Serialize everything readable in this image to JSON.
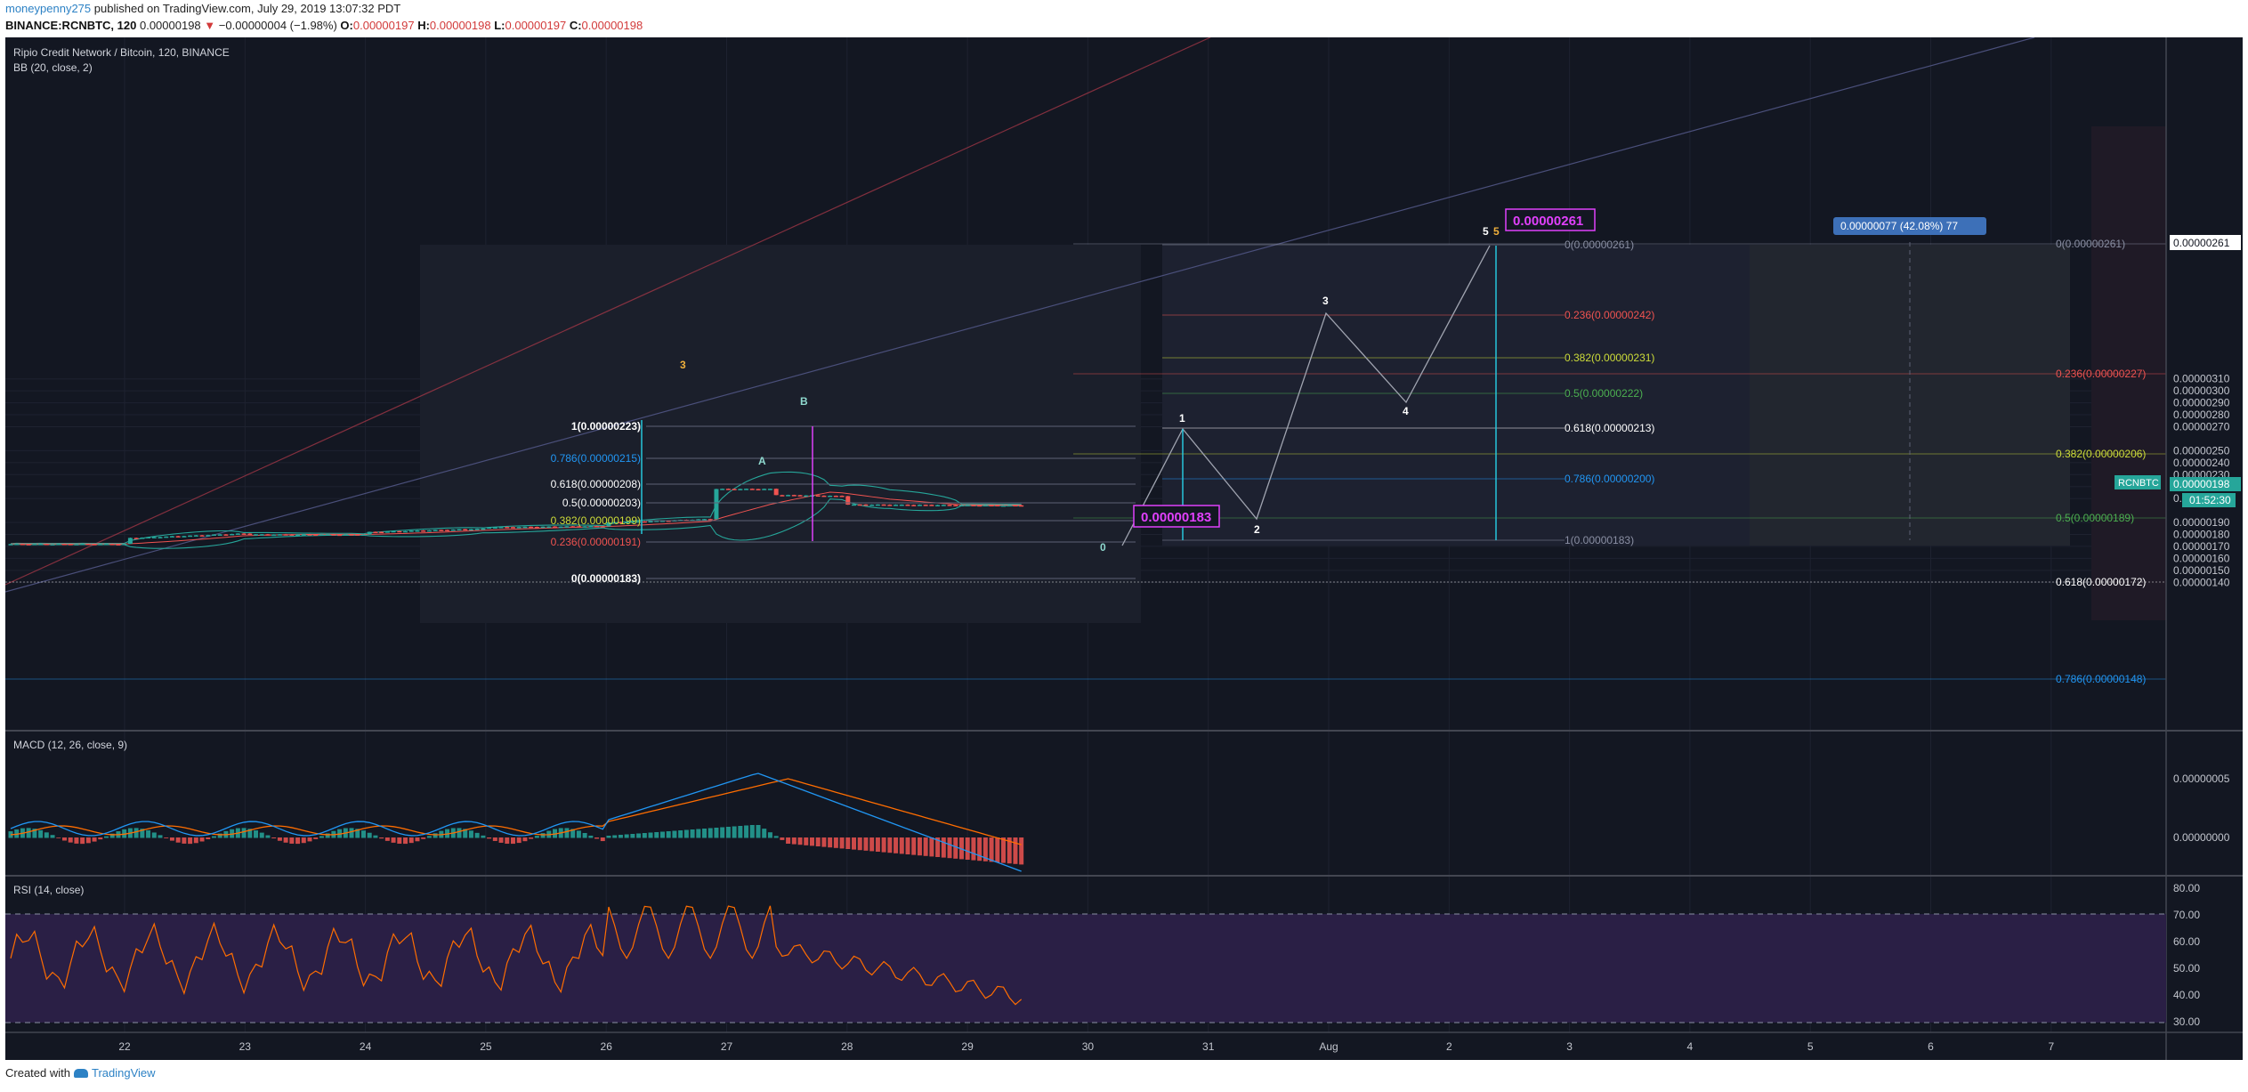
{
  "header": {
    "user": "moneypenny275",
    "published": "published on TradingView.com, July 29, 2019 13:07:32 PDT",
    "symbol_line": "BINANCE:RCNBTC, 120",
    "last": "0.00000198",
    "change": "−0.00000004 (−1.98%)",
    "o_label": "O:",
    "o": "0.00000197",
    "h_label": "H:",
    "h": "0.00000198",
    "l_label": "L:",
    "l": "0.00000197",
    "c_label": "C:",
    "c": "0.00000198"
  },
  "chart": {
    "title": "Ripio Credit Network / Bitcoin, 120, BINANCE",
    "bb_label": "BB (20, close, 2)",
    "macd_label": "MACD (12, 26, close, 9)",
    "rsi_label": "RSI (14, close)",
    "price_ticks": [
      "0.00000310",
      "0.00000300",
      "0.00000290",
      "0.00000280",
      "0.00000270",
      "0.00000261",
      "0.00000250",
      "0.00000240",
      "0.00000230",
      "0.00000220",
      "0.00000210",
      "0.00000198",
      "0.00000190",
      "0.00000180",
      "0.00000170",
      "0.00000160",
      "0.00000150",
      "0.00000140"
    ],
    "macd_ticks": [
      "0.00000005",
      "0.00000000"
    ],
    "rsi_ticks": [
      "80.00",
      "70.00",
      "60.00",
      "50.00",
      "40.00",
      "30.00"
    ],
    "date_ticks": [
      "22",
      "23",
      "24",
      "25",
      "26",
      "27",
      "28",
      "29",
      "30",
      "31",
      "Aug",
      "2",
      "3",
      "4",
      "5",
      "6",
      "7"
    ],
    "symbol_badge": "RCNBTC",
    "price_badge": "0.00000198",
    "countdown": "01:52:30",
    "measure_label": "0.00000077 (42.08%) 77",
    "target_label": "0.00000261",
    "low_label": "0.00000183",
    "fib_left": [
      "1(0.00000223)",
      "0.786(0.00000215)",
      "0.618(0.00000208)",
      "0.5(0.00000203)",
      "0.382(0.00000199)",
      "0.236(0.00000191)",
      "0(0.00000183)"
    ],
    "fib_mid": [
      "0(0.00000261)",
      "0.236(0.00000242)",
      "0.382(0.00000231)",
      "0.5(0.00000222)",
      "0.618(0.00000213)",
      "0.786(0.00000200)",
      "1(0.00000183)"
    ],
    "fib_right": [
      "0(0.00000261)",
      "0.236(0.00000227)",
      "0.382(0.00000206)",
      "0.5(0.00000189)",
      "0.618(0.00000172)",
      "0.786(0.00000148)"
    ],
    "waves": {
      "w0": "0",
      "w1": "1",
      "w2": "2",
      "w3": "3",
      "w4": "4",
      "w5": "5",
      "w5b": "5",
      "a": "A",
      "b": "B",
      "c": "3"
    },
    "colors": {
      "bg": "#131722",
      "grid": "#1e2230",
      "up": "#26a69a",
      "down": "#ef5350",
      "macd": "#2196f3",
      "signal": "#ff6d00",
      "rsi": "#ff6d00",
      "rsi_band": "#2a1f45",
      "accent": "#e040fb",
      "teal": "#26c6da"
    }
  },
  "chart_data": {
    "type": "line",
    "title": "Ripio Credit Network / Bitcoin, 120, BINANCE",
    "x": [
      "22",
      "23",
      "24",
      "25",
      "26",
      "27",
      "28",
      "29"
    ],
    "series": [
      {
        "name": "RCNBTC",
        "values": [
          1.72e-06,
          1.8e-06,
          1.83e-06,
          1.88e-06,
          2.03e-06,
          2.2e-06,
          2.07e-06,
          1.98e-06
        ]
      },
      {
        "name": "RSI (14, close)",
        "values": [
          50,
          58,
          55,
          57,
          75,
          65,
          52,
          42
        ]
      }
    ],
    "ylim": [
      1.35e-06,
      3.15e-06
    ]
  },
  "footer": {
    "created": "Created with",
    "brand": "TradingView"
  }
}
